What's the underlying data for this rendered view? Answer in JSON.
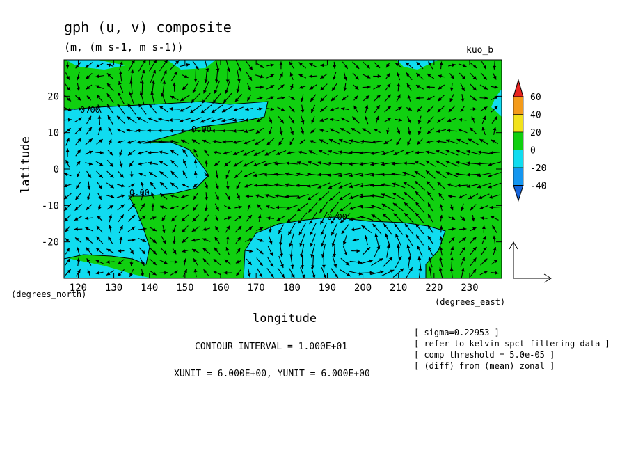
{
  "chart_data": {
    "type": "heatmap",
    "title": "gph (u, v) composite",
    "subtitle": "(m, (m s-1, m s-1))",
    "corner_label": "kuo_b",
    "xlabel": "longitude",
    "ylabel": "latitude",
    "x_units": "(degrees_east)",
    "y_units": "(degrees_north)",
    "xlim": [
      116,
      239
    ],
    "ylim": [
      -30,
      30
    ],
    "x_ticks": [
      120,
      130,
      140,
      150,
      160,
      170,
      180,
      190,
      200,
      210,
      220,
      230
    ],
    "y_ticks": [
      20,
      10,
      0,
      -10,
      -20
    ],
    "colorbar": {
      "levels": [
        60,
        40,
        20,
        0,
        -20,
        -40
      ],
      "colors": [
        "#e8231f",
        "#f49b1a",
        "#f2e21c",
        "#10d010",
        "#10dcf0",
        "#1496f0",
        "#1464dc"
      ]
    },
    "contour_label": "0.00",
    "grid": false,
    "notes": [
      "CONTOUR INTERVAL = 1.000E+01",
      "XUNIT = 6.000E+00, YUNIT = 6.000E+00"
    ],
    "info": [
      "[ sigma=0.22953 ]",
      "[ refer to kelvin spct filtering data ]",
      "[ comp threshold = 5.0e-05 ]",
      "[ (diff) from (mean) zonal ]"
    ],
    "field_colors": {
      "positive": "#10d010",
      "negative": "#10dcf0",
      "vector": "#000000"
    },
    "vector_field": {
      "description": "wind vectors on a regular 3-degree grid; easterly jet between 10N and 10S east of 160E",
      "x_step": 3,
      "y_step": 3
    }
  }
}
